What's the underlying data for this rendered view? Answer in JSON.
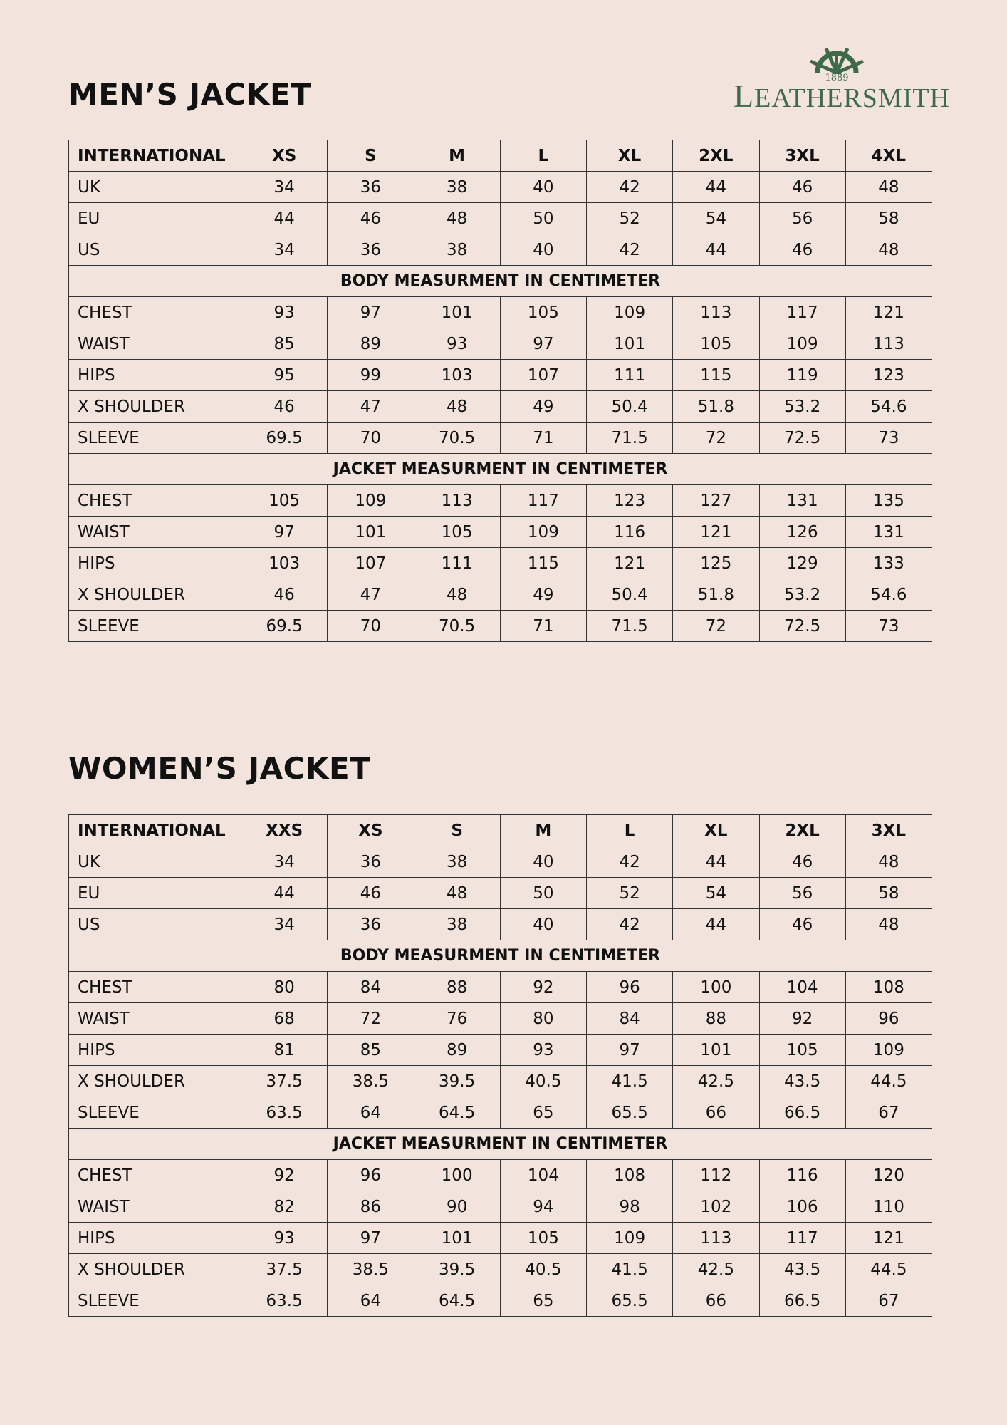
{
  "brand": {
    "name_first": "L",
    "name_rest": "EATHERSMITH",
    "year": "— 1889 —",
    "color": "#3f6a4a",
    "icon": "ship-wheel-icon"
  },
  "men": {
    "title": "MEN’S JACKET",
    "header": [
      "INTERNATIONAL",
      "XS",
      "S",
      "M",
      "L",
      "XL",
      "2XL",
      "3XL",
      "4XL"
    ],
    "conversion": [
      [
        "UK",
        "34",
        "36",
        "38",
        "40",
        "42",
        "44",
        "46",
        "48"
      ],
      [
        "EU",
        "44",
        "46",
        "48",
        "50",
        "52",
        "54",
        "56",
        "58"
      ],
      [
        "US",
        "34",
        "36",
        "38",
        "40",
        "42",
        "44",
        "46",
        "48"
      ]
    ],
    "body_title": "BODY MEASURMENT IN CENTIMETER",
    "body": [
      [
        "CHEST",
        "93",
        "97",
        "101",
        "105",
        "109",
        "113",
        "117",
        "121"
      ],
      [
        "WAIST",
        "85",
        "89",
        "93",
        "97",
        "101",
        "105",
        "109",
        "113"
      ],
      [
        "HIPS",
        "95",
        "99",
        "103",
        "107",
        "111",
        "115",
        "119",
        "123"
      ],
      [
        "X SHOULDER",
        "46",
        "47",
        "48",
        "49",
        "50.4",
        "51.8",
        "53.2",
        "54.6"
      ],
      [
        "SLEEVE",
        "69.5",
        "70",
        "70.5",
        "71",
        "71.5",
        "72",
        "72.5",
        "73"
      ]
    ],
    "jacket_title": "JACKET MEASURMENT IN CENTIMETER",
    "jacket": [
      [
        "CHEST",
        "105",
        "109",
        "113",
        "117",
        "123",
        "127",
        "131",
        "135"
      ],
      [
        "WAIST",
        "97",
        "101",
        "105",
        "109",
        "116",
        "121",
        "126",
        "131"
      ],
      [
        "HIPS",
        "103",
        "107",
        "111",
        "115",
        "121",
        "125",
        "129",
        "133"
      ],
      [
        "X SHOULDER",
        "46",
        "47",
        "48",
        "49",
        "50.4",
        "51.8",
        "53.2",
        "54.6"
      ],
      [
        "SLEEVE",
        "69.5",
        "70",
        "70.5",
        "71",
        "71.5",
        "72",
        "72.5",
        "73"
      ]
    ]
  },
  "women": {
    "title": "WOMEN’S JACKET",
    "header": [
      "INTERNATIONAL",
      "XXS",
      "XS",
      "S",
      "M",
      "L",
      "XL",
      "2XL",
      "3XL"
    ],
    "conversion": [
      [
        "UK",
        "34",
        "36",
        "38",
        "40",
        "42",
        "44",
        "46",
        "48"
      ],
      [
        "EU",
        "44",
        "46",
        "48",
        "50",
        "52",
        "54",
        "56",
        "58"
      ],
      [
        "US",
        "34",
        "36",
        "38",
        "40",
        "42",
        "44",
        "46",
        "48"
      ]
    ],
    "body_title": "BODY MEASURMENT IN CENTIMETER",
    "body": [
      [
        "CHEST",
        "80",
        "84",
        "88",
        "92",
        "96",
        "100",
        "104",
        "108"
      ],
      [
        "WAIST",
        "68",
        "72",
        "76",
        "80",
        "84",
        "88",
        "92",
        "96"
      ],
      [
        "HIPS",
        "81",
        "85",
        "89",
        "93",
        "97",
        "101",
        "105",
        "109"
      ],
      [
        "X SHOULDER",
        "37.5",
        "38.5",
        "39.5",
        "40.5",
        "41.5",
        "42.5",
        "43.5",
        "44.5"
      ],
      [
        "SLEEVE",
        "63.5",
        "64",
        "64.5",
        "65",
        "65.5",
        "66",
        "66.5",
        "67"
      ]
    ],
    "jacket_title": "JACKET MEASURMENT IN CENTIMETER",
    "jacket": [
      [
        "CHEST",
        "92",
        "96",
        "100",
        "104",
        "108",
        "112",
        "116",
        "120"
      ],
      [
        "WAIST",
        "82",
        "86",
        "90",
        "94",
        "98",
        "102",
        "106",
        "110"
      ],
      [
        "HIPS",
        "93",
        "97",
        "101",
        "105",
        "109",
        "113",
        "117",
        "121"
      ],
      [
        "X SHOULDER",
        "37.5",
        "38.5",
        "39.5",
        "40.5",
        "41.5",
        "42.5",
        "43.5",
        "44.5"
      ],
      [
        "SLEEVE",
        "63.5",
        "64",
        "64.5",
        "65",
        "65.5",
        "66",
        "66.5",
        "67"
      ]
    ]
  }
}
